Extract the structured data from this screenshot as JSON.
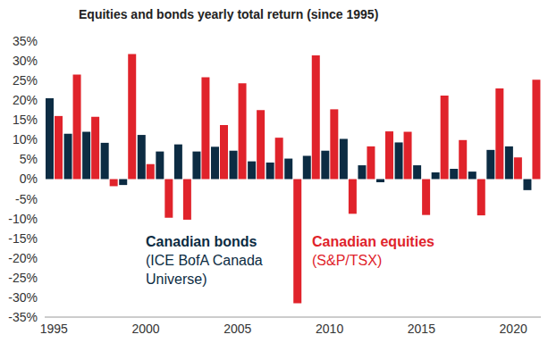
{
  "chart_data": {
    "type": "bar",
    "title": "Equities and bonds yearly total return (since 1995)",
    "x": [
      1995,
      1996,
      1997,
      1998,
      1999,
      2000,
      2001,
      2002,
      2003,
      2004,
      2005,
      2006,
      2007,
      2008,
      2009,
      2010,
      2011,
      2012,
      2013,
      2014,
      2015,
      2016,
      2017,
      2018,
      2019,
      2020,
      2021
    ],
    "series": [
      {
        "name": "Canadian bonds",
        "color": "#0c2c43",
        "values": [
          20.5,
          11.5,
          12,
          9.2,
          -1.5,
          11.2,
          7,
          8.8,
          7,
          8.2,
          7.2,
          4.5,
          4.2,
          5.2,
          5.9,
          7.2,
          10.2,
          3.5,
          -0.8,
          9.3,
          3.5,
          1.7,
          2.6,
          1.9,
          7.4,
          8.3,
          -2.8
        ]
      },
      {
        "name": "Canadian equities",
        "color": "#e0232b",
        "values": [
          16,
          26.5,
          15.8,
          -1.8,
          31.7,
          3.8,
          -9.8,
          -10.3,
          25.8,
          13.7,
          24.3,
          17.5,
          10.5,
          -31.5,
          31.4,
          17.7,
          -8.8,
          8.3,
          12.1,
          12,
          -9.1,
          21.2,
          9.9,
          -9.2,
          23,
          5.5,
          25.2
        ]
      }
    ],
    "annotations": [
      "(ICE BofA Canada Universe)",
      "(S&P/TSX)"
    ],
    "xlim": [
      1994.5,
      2021.5
    ],
    "xticks": [
      1995,
      2000,
      2005,
      2010,
      2015,
      2020
    ],
    "ylim": [
      -35,
      35
    ],
    "yticks": [
      {
        "value": -35,
        "label": "-35%"
      },
      {
        "value": -30,
        "label": "-30%"
      },
      {
        "value": -25,
        "label": "-25%"
      },
      {
        "value": -20,
        "label": "-20%"
      },
      {
        "value": -15,
        "label": "-15%"
      },
      {
        "value": -10,
        "label": "-10%"
      },
      {
        "value": -5,
        "label": "-5%"
      },
      {
        "value": 0,
        "label": "0%"
      },
      {
        "value": 5,
        "label": "5%"
      },
      {
        "value": 10,
        "label": "10%"
      },
      {
        "value": 15,
        "label": "15%"
      },
      {
        "value": 20,
        "label": "20%"
      },
      {
        "value": 25,
        "label": "25%"
      },
      {
        "value": 30,
        "label": "30%"
      },
      {
        "value": 35,
        "label": "35%"
      }
    ],
    "grid": false
  }
}
